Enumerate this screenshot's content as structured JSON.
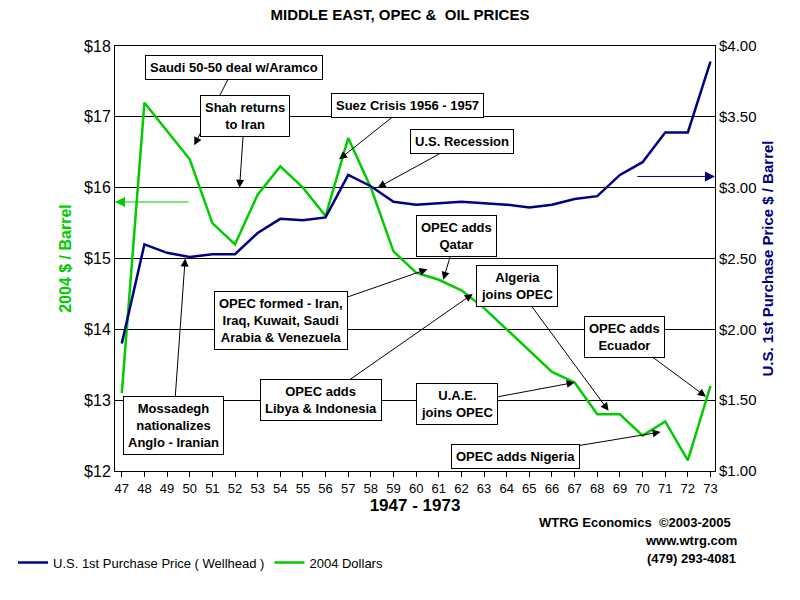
{
  "chart_data": {
    "type": "line",
    "title": "MIDDLE EAST, OPEC &  OIL PRICES",
    "x_label": "1947 - 1973",
    "y_label": "2004 $ / Barrel",
    "y2_label": "U.S. 1st Purchase Price $ / Barrel",
    "x": [
      47,
      48,
      49,
      50,
      51,
      52,
      53,
      54,
      55,
      56,
      57,
      58,
      59,
      60,
      61,
      62,
      63,
      64,
      65,
      66,
      67,
      68,
      69,
      70,
      71,
      72,
      73
    ],
    "xlim": [
      46.7,
      73.2
    ],
    "xticks": [
      47,
      48,
      49,
      50,
      51,
      52,
      53,
      54,
      55,
      56,
      57,
      58,
      59,
      60,
      61,
      62,
      63,
      64,
      65,
      66,
      67,
      68,
      69,
      70,
      71,
      72,
      73
    ],
    "ylim": [
      12,
      18
    ],
    "yticks": [
      {
        "value": 12,
        "label": "$12"
      },
      {
        "value": 13,
        "label": "$13"
      },
      {
        "value": 14,
        "label": "$14"
      },
      {
        "value": 15,
        "label": "$15"
      },
      {
        "value": 16,
        "label": "$16"
      },
      {
        "value": 17,
        "label": "$17"
      },
      {
        "value": 18,
        "label": "$18"
      }
    ],
    "y2lim": [
      1,
      4
    ],
    "y2ticks": [
      {
        "value": 1,
        "label": "$1.00"
      },
      {
        "value": 1.5,
        "label": "$1.50"
      },
      {
        "value": 2,
        "label": "$2.00"
      },
      {
        "value": 2.5,
        "label": "$2.50"
      },
      {
        "value": 3,
        "label": "$3.00"
      },
      {
        "value": 3.5,
        "label": "$3.50"
      },
      {
        "value": 4,
        "label": "$4.00"
      }
    ],
    "grid": true,
    "legend": "bottom left",
    "series": [
      {
        "name": "U.S. 1st Purchase Price ( Wellhead )",
        "color": "#000080",
        "axis": "y2",
        "values": [
          1.9,
          2.6,
          2.54,
          2.51,
          2.53,
          2.53,
          2.68,
          2.78,
          2.77,
          2.79,
          3.09,
          3.01,
          2.9,
          2.88,
          2.89,
          2.9,
          2.89,
          2.88,
          2.86,
          2.88,
          2.92,
          2.94,
          3.09,
          3.18,
          3.39,
          3.39,
          3.89
        ]
      },
      {
        "name": "2004 Dollars",
        "color": "#00cc00",
        "values": [
          13.1,
          17.2,
          16.8,
          16.4,
          15.5,
          15.2,
          15.9,
          16.3,
          16.0,
          15.6,
          16.7,
          16.0,
          15.1,
          14.8,
          14.7,
          14.55,
          14.3,
          14.0,
          13.7,
          13.4,
          13.25,
          12.8,
          12.8,
          12.5,
          12.7,
          12.15,
          13.2
        ]
      }
    ],
    "annotations": [
      {
        "text": "Saudi 50-50 deal w/Aramco"
      },
      {
        "text": "Shah returns\nto Iran"
      },
      {
        "text": "Suez Crisis 1956 - 1957"
      },
      {
        "text": "U.S. Recession"
      },
      {
        "text": "OPEC adds\nQatar"
      },
      {
        "text": "OPEC formed - Iran,\nIraq, Kuwait, Saudi\nArabia & Venezuela"
      },
      {
        "text": "Algeria\njoins OPEC"
      },
      {
        "text": "OPEC adds\nEcuador"
      },
      {
        "text": "Mossadegh\nnationalizes\nAnglo - Iranian"
      },
      {
        "text": "OPEC adds\nLibya & Indonesia"
      },
      {
        "text": "U.A.E.\njoins OPEC"
      },
      {
        "text": "OPEC adds Nigeria"
      }
    ],
    "footer": [
      "WTRG Economics  ©2003-2005",
      "www.wtrg.com",
      "(479) 293-4081"
    ]
  }
}
